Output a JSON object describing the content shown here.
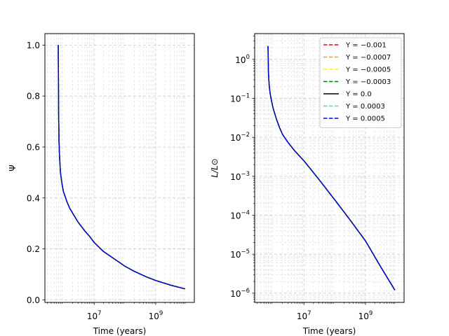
{
  "chart_data": [
    {
      "type": "line",
      "xscale": "log",
      "yscale": "linear",
      "xlim": [
        250000,
        18000000000
      ],
      "ylim": [
        -0.01,
        1.045
      ],
      "xticks": [
        {
          "value": 10000000,
          "base": "10",
          "exp": "7"
        },
        {
          "value": 1000000000,
          "base": "10",
          "exp": "9"
        }
      ],
      "yticks": [
        {
          "value": 0.0,
          "label": "0.0"
        },
        {
          "value": 0.2,
          "label": "0.2"
        },
        {
          "value": 0.4,
          "label": "0.4"
        },
        {
          "value": 0.6,
          "label": "0.6"
        },
        {
          "value": 0.8,
          "label": "0.8"
        },
        {
          "value": 1.0,
          "label": "1.0"
        }
      ],
      "xlabel": "Time (years)",
      "ylabel": "Ψ",
      "grid": true,
      "x": [
        680000,
        690000,
        700000,
        720000,
        750000,
        800000,
        900000,
        1000000,
        1300000,
        1600000,
        2000000,
        3000000,
        5000000,
        7000000,
        10000000,
        20000000,
        50000000,
        100000000,
        200000000,
        500000000,
        1000000000,
        3000000000,
        9000000000
      ],
      "series": [
        {
          "name": "Y = −0.001",
          "color": "#ff0000",
          "dash": "dashed",
          "values": [
            1.0,
            0.85,
            0.72,
            0.62,
            0.56,
            0.5,
            0.455,
            0.425,
            0.385,
            0.36,
            0.34,
            0.305,
            0.27,
            0.25,
            0.225,
            0.19,
            0.157,
            0.132,
            0.112,
            0.09,
            0.076,
            0.058,
            0.043
          ]
        },
        {
          "name": "Y = −0.0007",
          "color": "#ffa500",
          "dash": "dashed",
          "values": [
            1.0,
            0.85,
            0.72,
            0.62,
            0.56,
            0.5,
            0.455,
            0.425,
            0.385,
            0.36,
            0.34,
            0.305,
            0.27,
            0.25,
            0.225,
            0.19,
            0.157,
            0.132,
            0.112,
            0.09,
            0.076,
            0.058,
            0.043
          ]
        },
        {
          "name": "Y = −0.0005",
          "color": "#ffff00",
          "dash": "dashed",
          "values": [
            1.0,
            0.85,
            0.72,
            0.62,
            0.56,
            0.5,
            0.455,
            0.425,
            0.385,
            0.36,
            0.34,
            0.305,
            0.27,
            0.25,
            0.225,
            0.19,
            0.157,
            0.132,
            0.112,
            0.09,
            0.076,
            0.058,
            0.043
          ]
        },
        {
          "name": "Y = −0.0003",
          "color": "#008000",
          "dash": "dashed",
          "values": [
            1.0,
            0.85,
            0.72,
            0.62,
            0.56,
            0.5,
            0.455,
            0.425,
            0.385,
            0.36,
            0.34,
            0.305,
            0.27,
            0.25,
            0.225,
            0.19,
            0.157,
            0.132,
            0.112,
            0.09,
            0.076,
            0.058,
            0.043
          ]
        },
        {
          "name": "Y = 0.0",
          "color": "#000000",
          "dash": "solid",
          "values": [
            1.0,
            0.85,
            0.72,
            0.62,
            0.56,
            0.5,
            0.455,
            0.425,
            0.385,
            0.36,
            0.34,
            0.305,
            0.27,
            0.25,
            0.225,
            0.19,
            0.157,
            0.132,
            0.112,
            0.09,
            0.076,
            0.058,
            0.043
          ]
        },
        {
          "name": "Y = 0.0003",
          "color": "#40e0d0",
          "dash": "dashed",
          "values": [
            1.0,
            0.85,
            0.72,
            0.62,
            0.56,
            0.5,
            0.455,
            0.425,
            0.385,
            0.36,
            0.34,
            0.305,
            0.27,
            0.25,
            0.225,
            0.19,
            0.157,
            0.132,
            0.112,
            0.09,
            0.076,
            0.058,
            0.043
          ]
        },
        {
          "name": "Y = 0.0005",
          "color": "#0000ff",
          "dash": "dashed",
          "values": [
            1.0,
            0.85,
            0.72,
            0.62,
            0.56,
            0.5,
            0.455,
            0.425,
            0.385,
            0.36,
            0.34,
            0.305,
            0.27,
            0.25,
            0.225,
            0.19,
            0.157,
            0.132,
            0.112,
            0.09,
            0.076,
            0.058,
            0.043
          ]
        }
      ]
    },
    {
      "type": "line",
      "xscale": "log",
      "yscale": "log",
      "xlim": [
        250000,
        18000000000
      ],
      "ylim": [
        5.8e-07,
        4.6
      ],
      "xticks": [
        {
          "value": 10000000,
          "base": "10",
          "exp": "7"
        },
        {
          "value": 1000000000,
          "base": "10",
          "exp": "9"
        }
      ],
      "yticks": [
        {
          "value": 1e-06,
          "base": "10",
          "exp": "−6"
        },
        {
          "value": 1e-05,
          "base": "10",
          "exp": "−5"
        },
        {
          "value": 0.0001,
          "base": "10",
          "exp": "−4"
        },
        {
          "value": 0.001,
          "base": "10",
          "exp": "−3"
        },
        {
          "value": 0.01,
          "base": "10",
          "exp": "−2"
        },
        {
          "value": 0.1,
          "base": "10",
          "exp": "−1"
        },
        {
          "value": 1,
          "base": "10",
          "exp": "0"
        }
      ],
      "xlabel": "Time (years)",
      "ylabel": "L/L⊙",
      "grid": true,
      "legend_position": "upper right",
      "x": [
        680000,
        690000,
        700000,
        720000,
        750000,
        800000,
        900000,
        1000000,
        1300000,
        1600000,
        2000000,
        3000000,
        5000000,
        10000000,
        30000000,
        100000000,
        300000000,
        1000000000,
        3000000000,
        9000000000
      ],
      "series": [
        {
          "name": "Y = −0.001",
          "color": "#ff0000",
          "dash": "dashed",
          "values": [
            2.2,
            1.0,
            0.5,
            0.3,
            0.2,
            0.13,
            0.08,
            0.055,
            0.028,
            0.018,
            0.012,
            0.0075,
            0.0045,
            0.0025,
            0.00085,
            0.00025,
            8e-05,
            2.2e-05,
            5e-06,
            1.2e-06
          ]
        },
        {
          "name": "Y = −0.0007",
          "color": "#ffa500",
          "dash": "dashed",
          "values": [
            2.2,
            1.0,
            0.5,
            0.3,
            0.2,
            0.13,
            0.08,
            0.055,
            0.028,
            0.018,
            0.012,
            0.0075,
            0.0045,
            0.0025,
            0.00085,
            0.00025,
            8e-05,
            2.2e-05,
            5e-06,
            1.2e-06
          ]
        },
        {
          "name": "Y = −0.0005",
          "color": "#ffff00",
          "dash": "dashed",
          "values": [
            2.2,
            1.0,
            0.5,
            0.3,
            0.2,
            0.13,
            0.08,
            0.055,
            0.028,
            0.018,
            0.012,
            0.0075,
            0.0045,
            0.0025,
            0.00085,
            0.00025,
            8e-05,
            2.2e-05,
            5e-06,
            1.2e-06
          ]
        },
        {
          "name": "Y = −0.0003",
          "color": "#008000",
          "dash": "dashed",
          "values": [
            2.2,
            1.0,
            0.5,
            0.3,
            0.2,
            0.13,
            0.08,
            0.055,
            0.028,
            0.018,
            0.012,
            0.0075,
            0.0045,
            0.0025,
            0.00085,
            0.00025,
            8e-05,
            2.2e-05,
            5e-06,
            1.2e-06
          ]
        },
        {
          "name": "Y = 0.0",
          "color": "#000000",
          "dash": "solid",
          "values": [
            2.2,
            1.0,
            0.5,
            0.3,
            0.2,
            0.13,
            0.08,
            0.055,
            0.028,
            0.018,
            0.012,
            0.0075,
            0.0045,
            0.0025,
            0.00085,
            0.00025,
            8e-05,
            2.2e-05,
            5e-06,
            1.2e-06
          ]
        },
        {
          "name": "Y = 0.0003",
          "color": "#40e0d0",
          "dash": "dashed",
          "values": [
            2.2,
            1.0,
            0.5,
            0.3,
            0.2,
            0.13,
            0.08,
            0.055,
            0.028,
            0.018,
            0.012,
            0.0075,
            0.0045,
            0.0025,
            0.00085,
            0.00025,
            8e-05,
            2.2e-05,
            5e-06,
            1.2e-06
          ]
        },
        {
          "name": "Y = 0.0005",
          "color": "#0000ff",
          "dash": "dashed",
          "values": [
            2.2,
            1.0,
            0.5,
            0.3,
            0.2,
            0.13,
            0.08,
            0.055,
            0.028,
            0.018,
            0.012,
            0.0075,
            0.0045,
            0.0025,
            0.00085,
            0.00025,
            8e-05,
            2.2e-05,
            5e-06,
            1.2e-06
          ]
        }
      ]
    }
  ]
}
